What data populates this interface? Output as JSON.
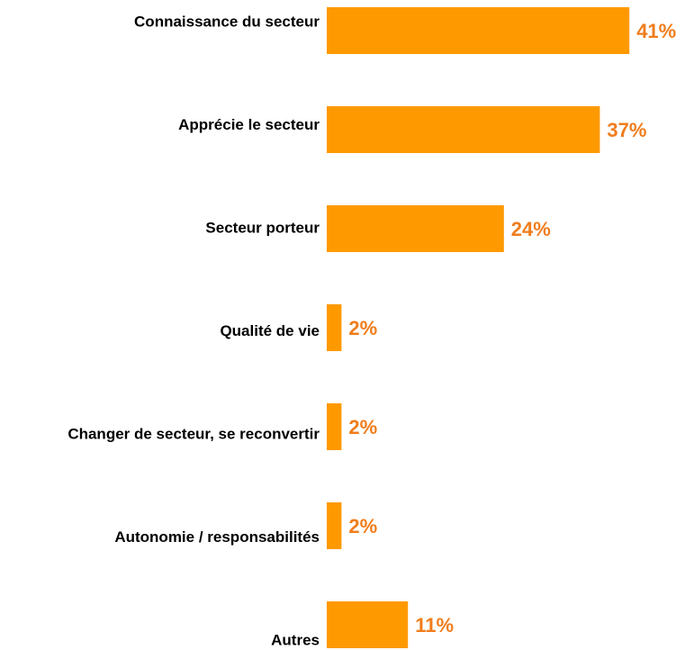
{
  "chart_data": {
    "type": "bar",
    "orientation": "horizontal",
    "categories": [
      "Connaissance du secteur",
      "Apprécie le secteur",
      "Secteur porteur",
      "Qualité de vie",
      "Changer de secteur, se reconvertir",
      "Autonomie / responsabilités",
      "Autres"
    ],
    "values": [
      41,
      37,
      24,
      2,
      2,
      2,
      11
    ],
    "value_labels": [
      "41%",
      "37%",
      "24%",
      "2%",
      "2%",
      "2%",
      "11%"
    ],
    "color": "#ff9900",
    "label_color": "#f07d1c"
  }
}
